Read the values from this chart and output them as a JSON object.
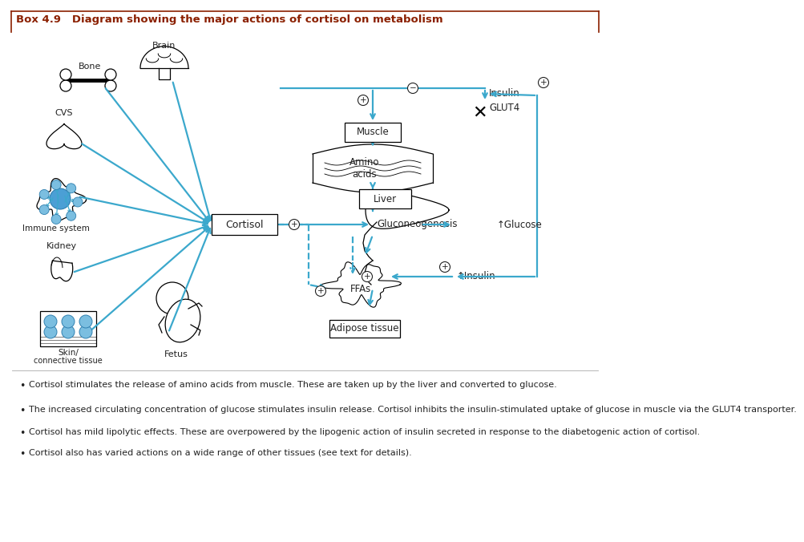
{
  "title": "Box 4.9   Diagram showing the major actions of cortisol on metabolism",
  "title_color": "#8B2000",
  "bg_color": "#FFFFFF",
  "arrow_color": "#3BA8CC",
  "text_color": "#222222",
  "bullet_points": [
    "Cortisol stimulates the release of amino acids from muscle. These are taken up by the liver and converted to glucose.",
    "The increased circulating concentration of glucose stimulates insulin release. Cortisol inhibits the insulin-stimulated uptake of glucose in muscle via the GLUT4 transporter.",
    "Cortisol has mild lipolytic effects. These are overpowered by the lipogenic action of insulin secreted in response to the diabetogenic action of cortisol.",
    "Cortisol also has varied actions on a wide range of other tissues (see text for details)."
  ]
}
